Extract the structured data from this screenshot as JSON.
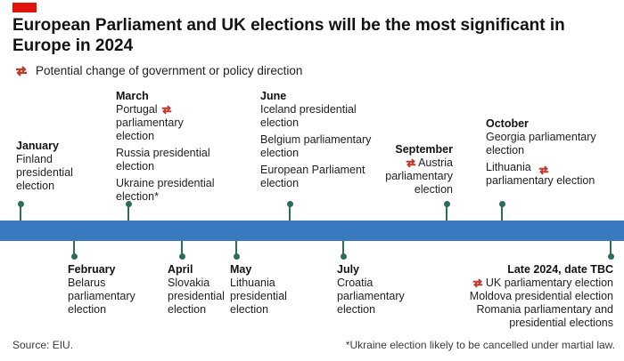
{
  "headline": "European Parliament and UK elections will be the most significant in Europe in 2024",
  "legend": {
    "icon": "swap-arrows-icon",
    "text": "Potential change of government or policy direction"
  },
  "colors": {
    "accent": "#e3120b",
    "band": "#3a7bbf",
    "tick": "#2e6b5e",
    "icon": "#c0392b"
  },
  "events_above": [
    {
      "month": "January",
      "items": [
        "Finland presidential election"
      ]
    },
    {
      "month": "March",
      "items": [
        "Portugal parliamentary election",
        "Russia presidential election",
        "Ukraine presidential election*"
      ]
    },
    {
      "month": "June",
      "items": [
        "Iceland presidential election",
        "Belgium parliamentary election",
        "European Parliament election"
      ]
    },
    {
      "month": "September",
      "items": [
        "Austria parliamentary election"
      ]
    },
    {
      "month": "October",
      "items": [
        "Georgia parliamentary election",
        "Lithuania parliamentary election"
      ]
    }
  ],
  "events_below": [
    {
      "month": "February",
      "items": [
        "Belarus parliamentary election"
      ]
    },
    {
      "month": "April",
      "items": [
        "Slovakia presidential election"
      ]
    },
    {
      "month": "May",
      "items": [
        "Lithuania presidential election"
      ]
    },
    {
      "month": "July",
      "items": [
        "Croatia parliamentary election"
      ]
    },
    {
      "month": "Late 2024, date TBC",
      "items": [
        "UK parliamentary election",
        "Moldova presidential election",
        "Romania parliamentary and presidential elections"
      ]
    }
  ],
  "source": "Source: EIU.",
  "footnote": "*Ukraine election likely to be cancelled under martial law."
}
